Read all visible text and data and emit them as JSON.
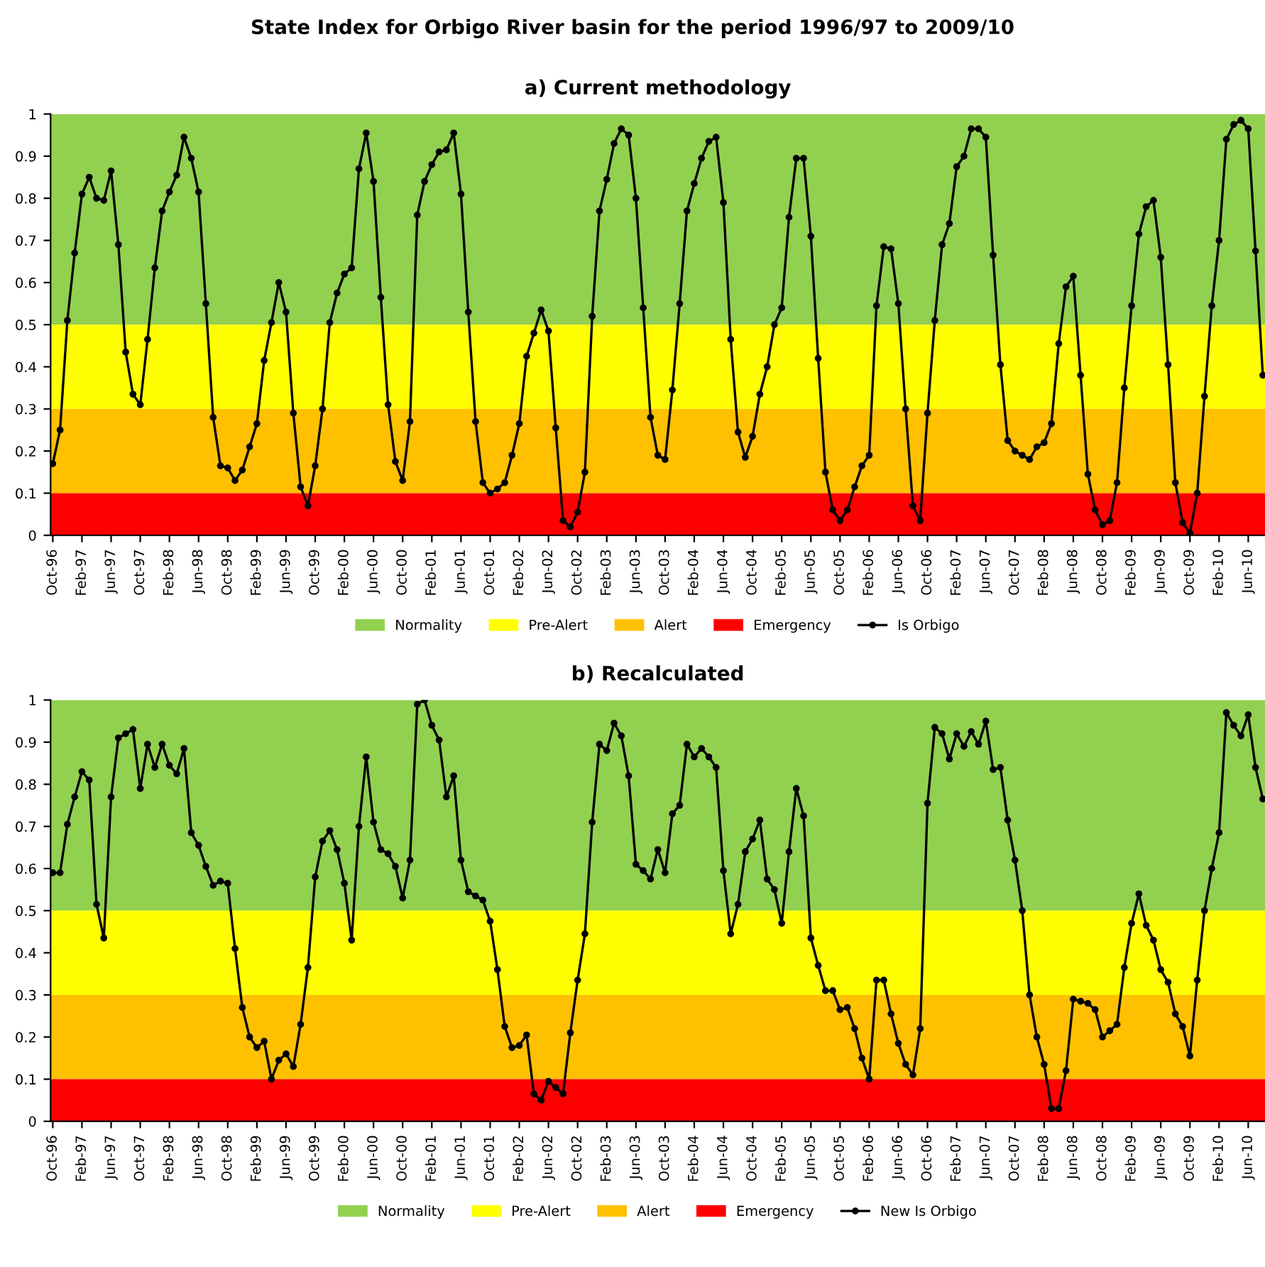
{
  "chart_data": [
    {
      "type": "line",
      "title": "State Index for Orbigo River basin for the period 1996/97 to 2009/10",
      "subtitle": "a) Current methodology",
      "categories": [
        "Oct-96",
        null,
        null,
        null,
        "Feb-97",
        null,
        null,
        null,
        "Jun-97",
        null,
        null,
        null,
        "Oct-97",
        null,
        null,
        null,
        "Feb-98",
        null,
        null,
        null,
        "Jun-98",
        null,
        null,
        null,
        "Oct-98",
        null,
        null,
        null,
        "Feb-99",
        null,
        null,
        null,
        "Jun-99",
        null,
        null,
        null,
        "Oct-99",
        null,
        null,
        null,
        "Feb-00",
        null,
        null,
        null,
        "Jun-00",
        null,
        null,
        null,
        "Oct-00",
        null,
        null,
        null,
        "Feb-01",
        null,
        null,
        null,
        "Jun-01",
        null,
        null,
        null,
        "Oct-01",
        null,
        null,
        null,
        "Feb-02",
        null,
        null,
        null,
        "Jun-02",
        null,
        null,
        null,
        "Oct-02",
        null,
        null,
        null,
        "Feb-03",
        null,
        null,
        null,
        "Jun-03",
        null,
        null,
        null,
        "Oct-03",
        null,
        null,
        null,
        "Feb-04",
        null,
        null,
        null,
        "Jun-04",
        null,
        null,
        null,
        "Oct-04",
        null,
        null,
        null,
        "Feb-05",
        null,
        null,
        null,
        "Jun-05",
        null,
        null,
        null,
        "Oct-05",
        null,
        null,
        null,
        "Feb-06",
        null,
        null,
        null,
        "Jun-06",
        null,
        null,
        null,
        "Oct-06",
        null,
        null,
        null,
        "Feb-07",
        null,
        null,
        null,
        "Jun-07",
        null,
        null,
        null,
        "Oct-07",
        null,
        null,
        null,
        "Feb-08",
        null,
        null,
        null,
        "Jun-08",
        null,
        null,
        null,
        "Oct-08",
        null,
        null,
        null,
        "Feb-09",
        null,
        null,
        null,
        "Jun-09",
        null,
        null,
        null,
        "Oct-09",
        null,
        null,
        null,
        "Feb-10",
        null,
        null,
        null,
        "Jun-10",
        null,
        null
      ],
      "series": [
        {
          "name": "Is Orbigo",
          "color": "#000000",
          "values": [
            0.17,
            0.25,
            0.51,
            0.67,
            0.81,
            0.85,
            0.8,
            0.795,
            0.865,
            0.69,
            0.435,
            0.335,
            0.31,
            0.465,
            0.635,
            0.77,
            0.815,
            0.855,
            0.945,
            0.895,
            0.815,
            0.55,
            0.28,
            0.165,
            0.16,
            0.13,
            0.155,
            0.21,
            0.265,
            0.415,
            0.505,
            0.6,
            0.53,
            0.29,
            0.115,
            0.07,
            0.165,
            0.3,
            0.505,
            0.575,
            0.62,
            0.635,
            0.87,
            0.955,
            0.84,
            0.565,
            0.31,
            0.175,
            0.13,
            0.27,
            0.76,
            0.84,
            0.88,
            0.91,
            0.915,
            0.955,
            0.81,
            0.53,
            0.27,
            0.125,
            0.1,
            0.11,
            0.125,
            0.19,
            0.265,
            0.425,
            0.48,
            0.535,
            0.485,
            0.255,
            0.035,
            0.02,
            0.055,
            0.15,
            0.52,
            0.77,
            0.845,
            0.93,
            0.965,
            0.95,
            0.8,
            0.54,
            0.28,
            0.19,
            0.18,
            0.345,
            0.55,
            0.77,
            0.835,
            0.895,
            0.935,
            0.945,
            0.79,
            0.465,
            0.245,
            0.185,
            0.235,
            0.335,
            0.4,
            0.5,
            0.54,
            0.755,
            0.895,
            0.895,
            0.71,
            0.42,
            0.15,
            0.06,
            0.035,
            0.06,
            0.115,
            0.165,
            0.19,
            0.545,
            0.685,
            0.68,
            0.55,
            0.3,
            0.07,
            0.035,
            0.29,
            0.51,
            0.69,
            0.74,
            0.875,
            0.9,
            0.965,
            0.965,
            0.945,
            0.665,
            0.405,
            0.225,
            0.2,
            0.19,
            0.18,
            0.21,
            0.22,
            0.265,
            0.455,
            0.59,
            0.615,
            0.38,
            0.145,
            0.06,
            0.025,
            0.035,
            0.125,
            0.35,
            0.545,
            0.715,
            0.78,
            0.795,
            0.66,
            0.405,
            0.125,
            0.03,
            0.005,
            0.1,
            0.33,
            0.545,
            0.7,
            0.94,
            0.975,
            0.985,
            0.965,
            0.675,
            0.38
          ]
        }
      ],
      "bands": [
        {
          "axis": "y",
          "from": 0.5,
          "to": 1,
          "label": "Normality",
          "color": "#92d050"
        },
        {
          "axis": "y",
          "from": 0.3,
          "to": 0.5,
          "label": "Pre-Alert",
          "color": "#ffff00"
        },
        {
          "axis": "y",
          "from": 0.1,
          "to": 0.3,
          "label": "Alert",
          "color": "#ffc000"
        },
        {
          "axis": "y",
          "from": 0,
          "to": 0.1,
          "label": "Emergency",
          "color": "#ff0000"
        }
      ],
      "ylim": [
        0,
        1
      ],
      "yticks": [
        0,
        0.1,
        0.2,
        0.3,
        0.4,
        0.5,
        0.6,
        0.7,
        0.8,
        0.9,
        1
      ],
      "grid": false,
      "legend": "bottom",
      "marker": "circle",
      "line_style": "solid"
    },
    {
      "type": "line",
      "title": "b) Recalculated",
      "categories": [
        "Oct-96",
        null,
        null,
        null,
        "Feb-97",
        null,
        null,
        null,
        "Jun-97",
        null,
        null,
        null,
        "Oct-97",
        null,
        null,
        null,
        "Feb-98",
        null,
        null,
        null,
        "Jun-98",
        null,
        null,
        null,
        "Oct-98",
        null,
        null,
        null,
        "Feb-99",
        null,
        null,
        null,
        "Jun-99",
        null,
        null,
        null,
        "Oct-99",
        null,
        null,
        null,
        "Feb-00",
        null,
        null,
        null,
        "Jun-00",
        null,
        null,
        null,
        "Oct-00",
        null,
        null,
        null,
        "Feb-01",
        null,
        null,
        null,
        "Jun-01",
        null,
        null,
        null,
        "Oct-01",
        null,
        null,
        null,
        "Feb-02",
        null,
        null,
        null,
        "Jun-02",
        null,
        null,
        null,
        "Oct-02",
        null,
        null,
        null,
        "Feb-03",
        null,
        null,
        null,
        "Jun-03",
        null,
        null,
        null,
        "Oct-03",
        null,
        null,
        null,
        "Feb-04",
        null,
        null,
        null,
        "Jun-04",
        null,
        null,
        null,
        "Oct-04",
        null,
        null,
        null,
        "Feb-05",
        null,
        null,
        null,
        "Jun-05",
        null,
        null,
        null,
        "Oct-05",
        null,
        null,
        null,
        "Feb-06",
        null,
        null,
        null,
        "Jun-06",
        null,
        null,
        null,
        "Oct-06",
        null,
        null,
        null,
        "Feb-07",
        null,
        null,
        null,
        "Jun-07",
        null,
        null,
        null,
        "Oct-07",
        null,
        null,
        null,
        "Feb-08",
        null,
        null,
        null,
        "Jun-08",
        null,
        null,
        null,
        "Oct-08",
        null,
        null,
        null,
        "Feb-09",
        null,
        null,
        null,
        "Jun-09",
        null,
        null,
        null,
        "Oct-09",
        null,
        null,
        null,
        "Feb-10",
        null,
        null,
        null,
        "Jun-10",
        null,
        null
      ],
      "series": [
        {
          "name": "New Is Orbigo",
          "color": "#000000",
          "values": [
            0.59,
            0.59,
            0.705,
            0.77,
            0.83,
            0.81,
            0.515,
            0.435,
            0.77,
            0.91,
            0.92,
            0.93,
            0.79,
            0.895,
            0.84,
            0.895,
            0.845,
            0.825,
            0.885,
            0.685,
            0.655,
            0.605,
            0.56,
            0.57,
            0.565,
            0.41,
            0.27,
            0.2,
            0.175,
            0.19,
            0.1,
            0.145,
            0.16,
            0.13,
            0.23,
            0.365,
            0.58,
            0.665,
            0.69,
            0.645,
            0.565,
            0.43,
            0.7,
            0.865,
            0.71,
            0.645,
            0.635,
            0.605,
            0.53,
            0.62,
            0.99,
            1.0,
            0.94,
            0.905,
            0.77,
            0.82,
            0.62,
            0.545,
            0.535,
            0.525,
            0.475,
            0.36,
            0.225,
            0.175,
            0.18,
            0.205,
            0.065,
            0.05,
            0.095,
            0.08,
            0.065,
            0.21,
            0.335,
            0.445,
            0.71,
            0.895,
            0.88,
            0.945,
            0.915,
            0.82,
            0.61,
            0.595,
            0.575,
            0.645,
            0.59,
            0.73,
            0.75,
            0.895,
            0.865,
            0.885,
            0.865,
            0.84,
            0.595,
            0.445,
            0.515,
            0.64,
            0.67,
            0.715,
            0.575,
            0.55,
            0.47,
            0.64,
            0.79,
            0.725,
            0.435,
            0.37,
            0.31,
            0.31,
            0.265,
            0.27,
            0.22,
            0.15,
            0.1,
            0.335,
            0.335,
            0.255,
            0.185,
            0.135,
            0.11,
            0.22,
            0.755,
            0.935,
            0.92,
            0.86,
            0.92,
            0.89,
            0.925,
            0.895,
            0.95,
            0.835,
            0.84,
            0.715,
            0.62,
            0.5,
            0.3,
            0.2,
            0.135,
            0.03,
            0.03,
            0.12,
            0.29,
            0.285,
            0.28,
            0.265,
            0.2,
            0.215,
            0.23,
            0.365,
            0.47,
            0.54,
            0.465,
            0.43,
            0.36,
            0.33,
            0.255,
            0.225,
            0.155,
            0.335,
            0.5,
            0.6,
            0.685,
            0.97,
            0.94,
            0.915,
            0.965,
            0.84,
            0.765
          ]
        }
      ],
      "bands": [
        {
          "axis": "y",
          "from": 0.5,
          "to": 1,
          "label": "Normality",
          "color": "#92d050"
        },
        {
          "axis": "y",
          "from": 0.3,
          "to": 0.5,
          "label": "Pre-Alert",
          "color": "#ffff00"
        },
        {
          "axis": "y",
          "from": 0.1,
          "to": 0.3,
          "label": "Alert",
          "color": "#ffc000"
        },
        {
          "axis": "y",
          "from": 0,
          "to": 0.1,
          "label": "Emergency",
          "color": "#ff0000"
        }
      ],
      "ylim": [
        0,
        1
      ],
      "yticks": [
        0,
        0.1,
        0.2,
        0.3,
        0.4,
        0.5,
        0.6,
        0.7,
        0.8,
        0.9,
        1
      ],
      "grid": false,
      "legend": "bottom",
      "marker": "circle",
      "line_style": "solid"
    }
  ]
}
